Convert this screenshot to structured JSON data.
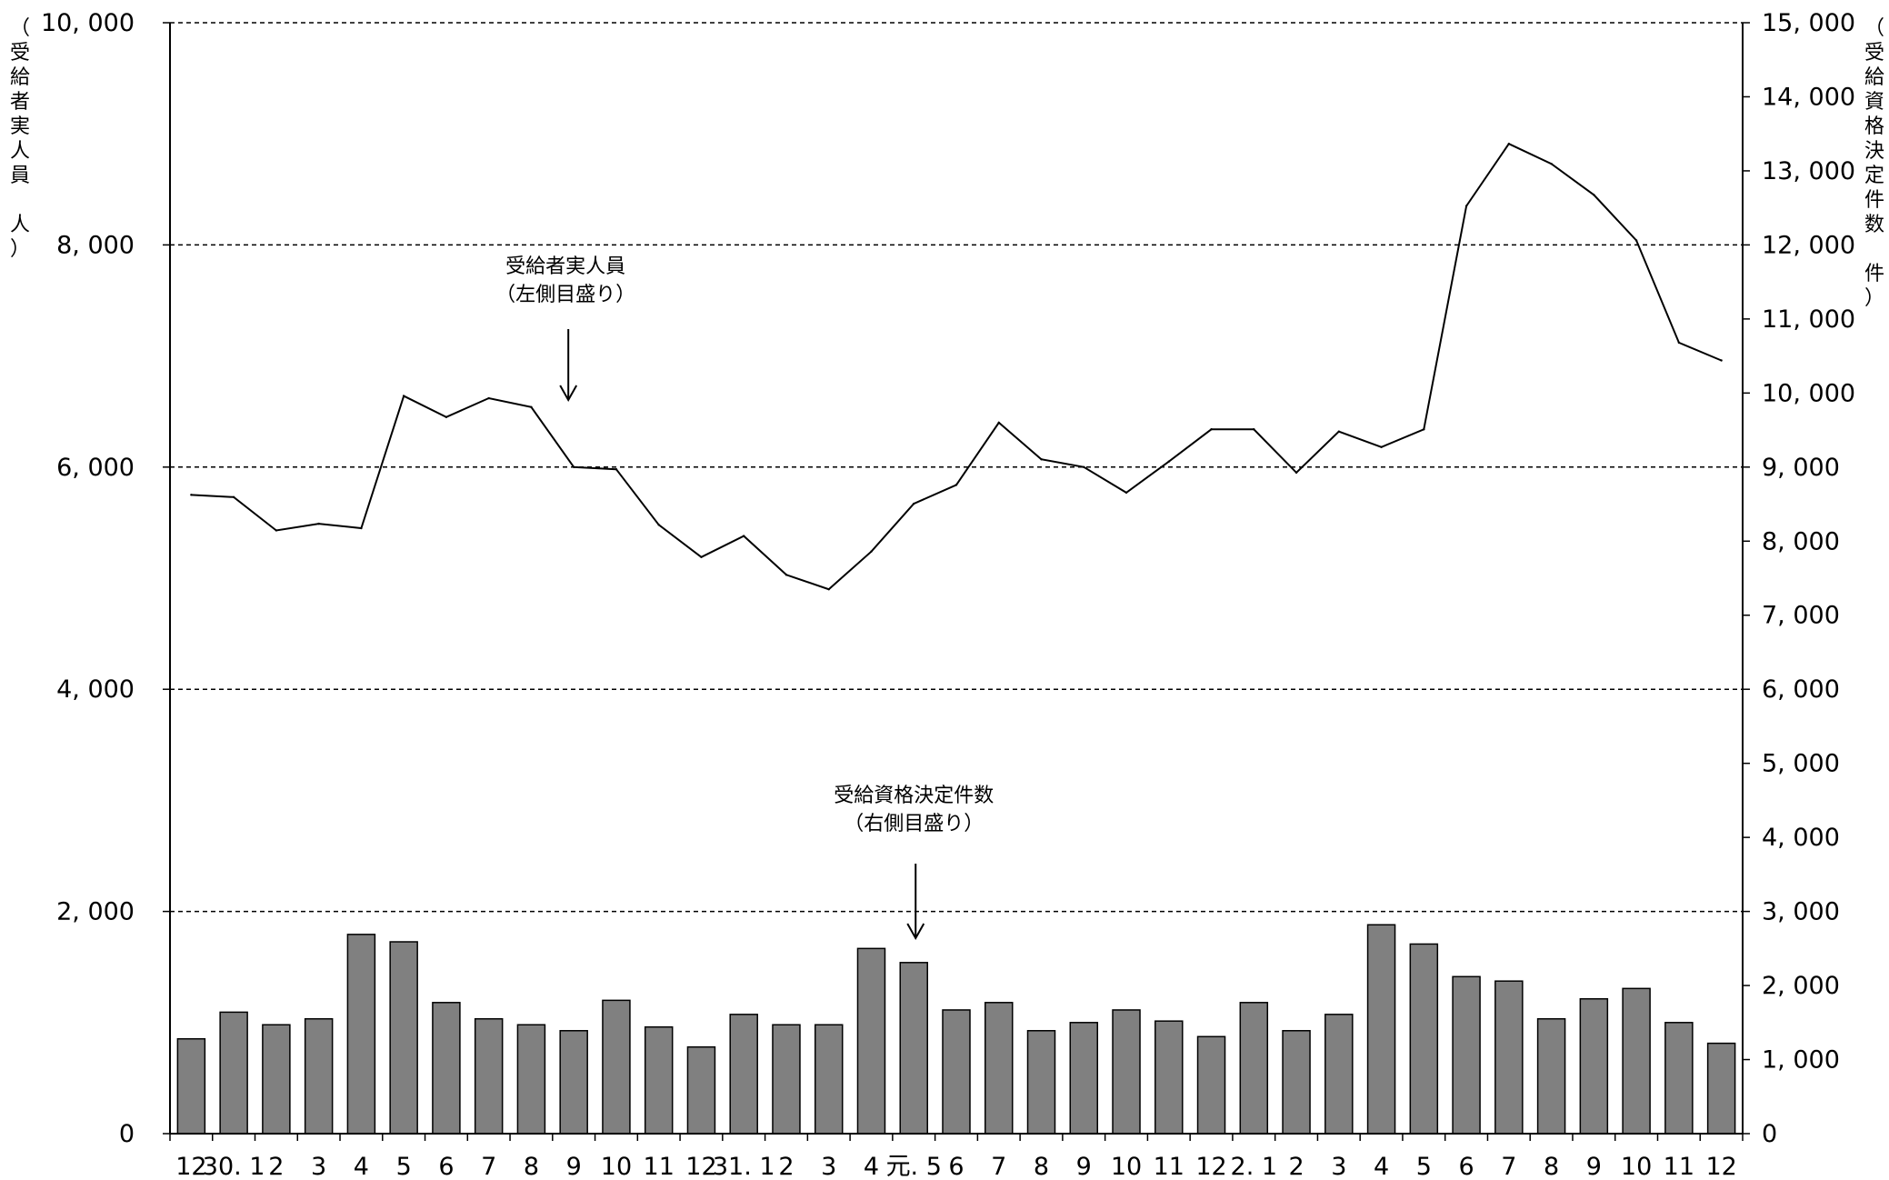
{
  "chart_data": {
    "type": "bar+line",
    "categories": [
      "12",
      "30. 1",
      "2",
      "3",
      "4",
      "5",
      "6",
      "7",
      "8",
      "9",
      "10",
      "11",
      "12",
      "31. 1",
      "2",
      "3",
      "4",
      "元. 5",
      "6",
      "7",
      "8",
      "9",
      "10",
      "11",
      "12",
      "2. 1",
      "2",
      "3",
      "4",
      "5",
      "6",
      "7",
      "8",
      "9",
      "10",
      "11",
      "12"
    ],
    "series": [
      {
        "name": "受給者実人員",
        "type": "line",
        "axis": "left",
        "values": [
          5750,
          5730,
          5430,
          5490,
          5450,
          6640,
          6450,
          6620,
          6540,
          6000,
          5980,
          5480,
          5190,
          5380,
          5030,
          4900,
          5240,
          5670,
          5840,
          6400,
          6070,
          6000,
          5770,
          6050,
          6340,
          6340,
          5950,
          6320,
          6180,
          6340,
          8350,
          8910,
          8730,
          8450,
          8040,
          7120,
          6960
        ]
      },
      {
        "name": "受給資格決定件数",
        "type": "bar",
        "axis": "right",
        "values": [
          1280,
          1640,
          1470,
          1550,
          2690,
          2590,
          1770,
          1550,
          1470,
          1390,
          1800,
          1440,
          1170,
          1610,
          1470,
          1470,
          2500,
          2310,
          1670,
          1770,
          1390,
          1500,
          1670,
          1520,
          1310,
          1770,
          1390,
          1610,
          2820,
          2560,
          2120,
          2060,
          1550,
          1820,
          1960,
          1500,
          1220
        ]
      }
    ],
    "left_axis": {
      "label": "（受給者実人員　人）",
      "range": [
        0,
        10000
      ],
      "ticks": [
        "0",
        "2, 000",
        "4, 000",
        "6, 000",
        "8, 000",
        "10, 000"
      ]
    },
    "right_axis": {
      "label": "（受給資格決定件数　件）",
      "range": [
        0,
        15000
      ],
      "ticks": [
        "0",
        "1, 000",
        "2, 000",
        "3, 000",
        "4, 000",
        "5, 000",
        "6, 000",
        "7, 000",
        "8, 000",
        "9, 000",
        "10, 000",
        "11, 000",
        "12, 000",
        "13, 000",
        "14, 000",
        "15, 000"
      ]
    },
    "gridlines": "horizontal dashed at left-axis major ticks",
    "annotations": [
      {
        "target": "line",
        "index": 9,
        "line1": "受給者実人員",
        "line2": "（左側目盛り）"
      },
      {
        "target": "bar",
        "index": 17,
        "line1": "受給資格決定件数",
        "line2": "（右側目盛り）"
      }
    ],
    "colors": {
      "bar_fill": "#808080",
      "bar_stroke": "#000000",
      "line": "#000000"
    }
  }
}
